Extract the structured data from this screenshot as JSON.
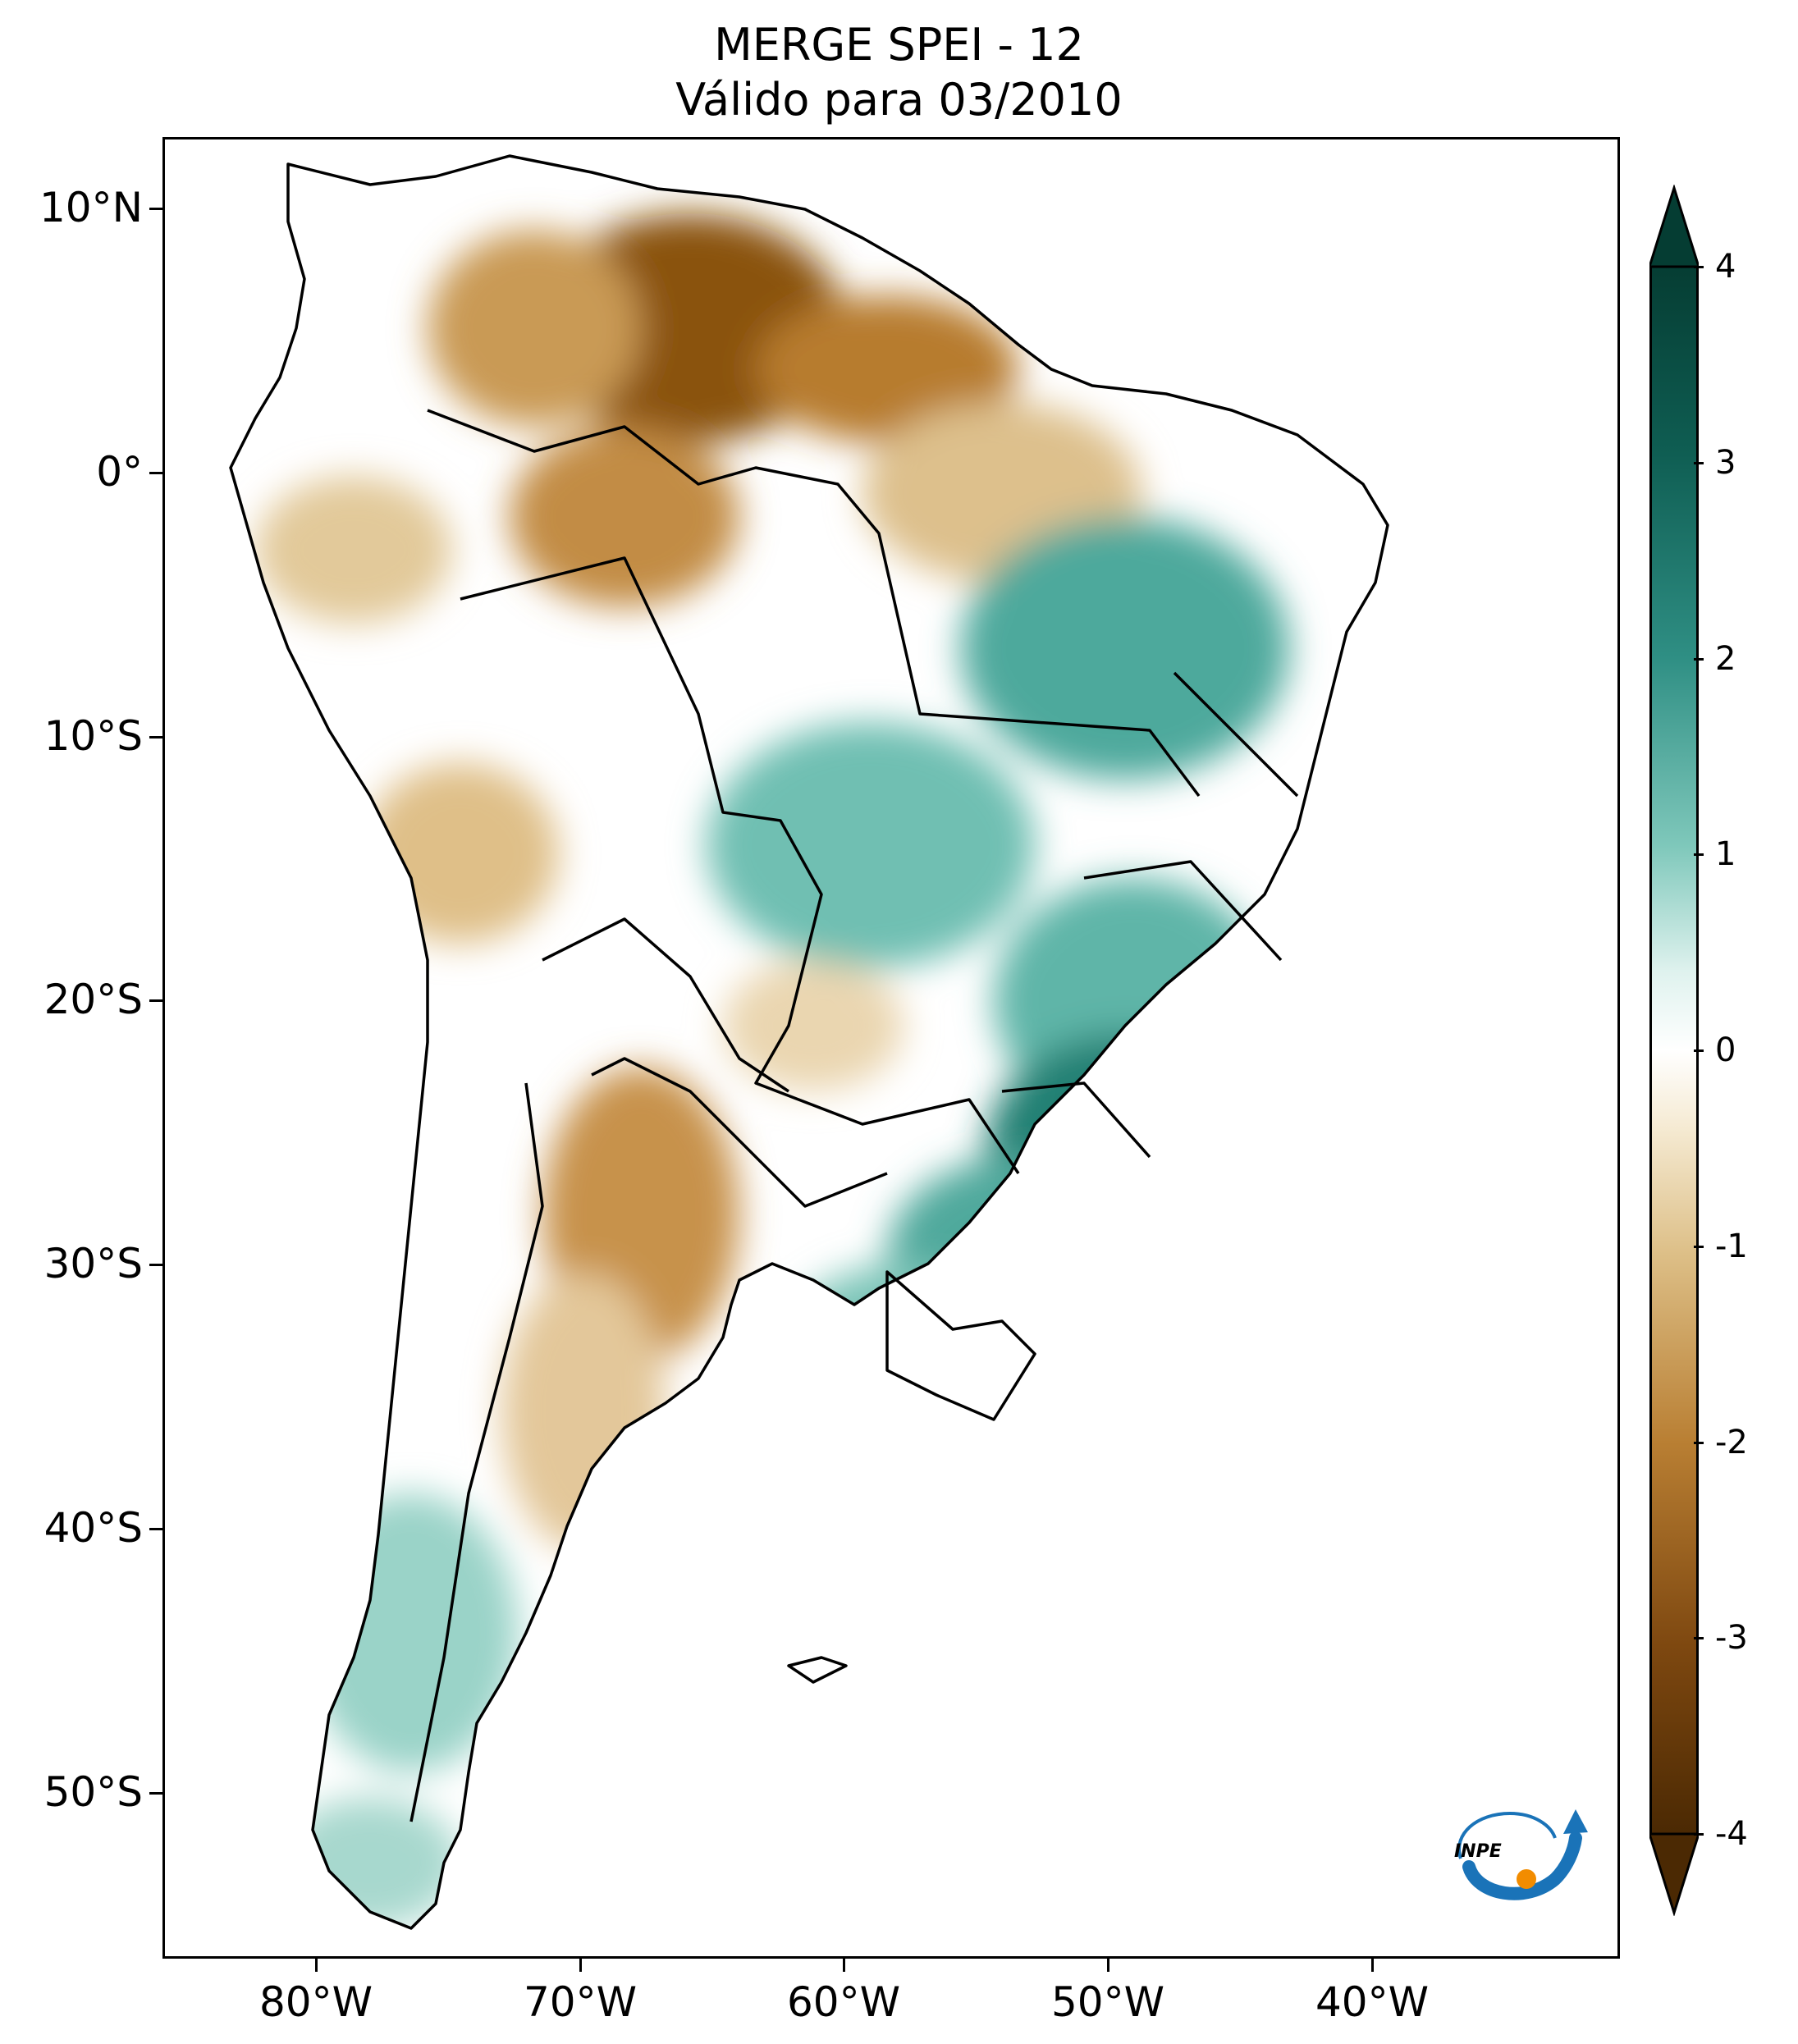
{
  "title": {
    "line1": "MERGE   SPEI - 12",
    "line2": "Válido para 03/2010"
  },
  "map": {
    "region": "South America",
    "variable": "SPEI - 12",
    "latitude_labels": [
      "10°N",
      "0°",
      "10°S",
      "20°S",
      "30°S",
      "40°S",
      "50°S"
    ],
    "longitude_labels": [
      "80°W",
      "70°W",
      "60°W",
      "50°W",
      "40°W"
    ],
    "palette": {
      "very_dry": "#5a3206",
      "dry": "#a8681f",
      "moderate_dry": "#d9b77a",
      "slight_dry": "#f1e3c2",
      "neutral": "#ffffff",
      "slight_wet": "#cdebe5",
      "moderate_wet": "#7fc8bb",
      "wet": "#2f8f84",
      "very_wet": "#053d33",
      "border": "#000000"
    }
  },
  "colorbar": {
    "min": -4,
    "max": 4,
    "tick_labels": [
      "4",
      "3",
      "2",
      "1",
      "0",
      "-1",
      "-2",
      "-3",
      "-4"
    ]
  },
  "logo": {
    "text": "INPE",
    "arrow_color": "#1a73b8",
    "dot_color": "#f28c00"
  }
}
